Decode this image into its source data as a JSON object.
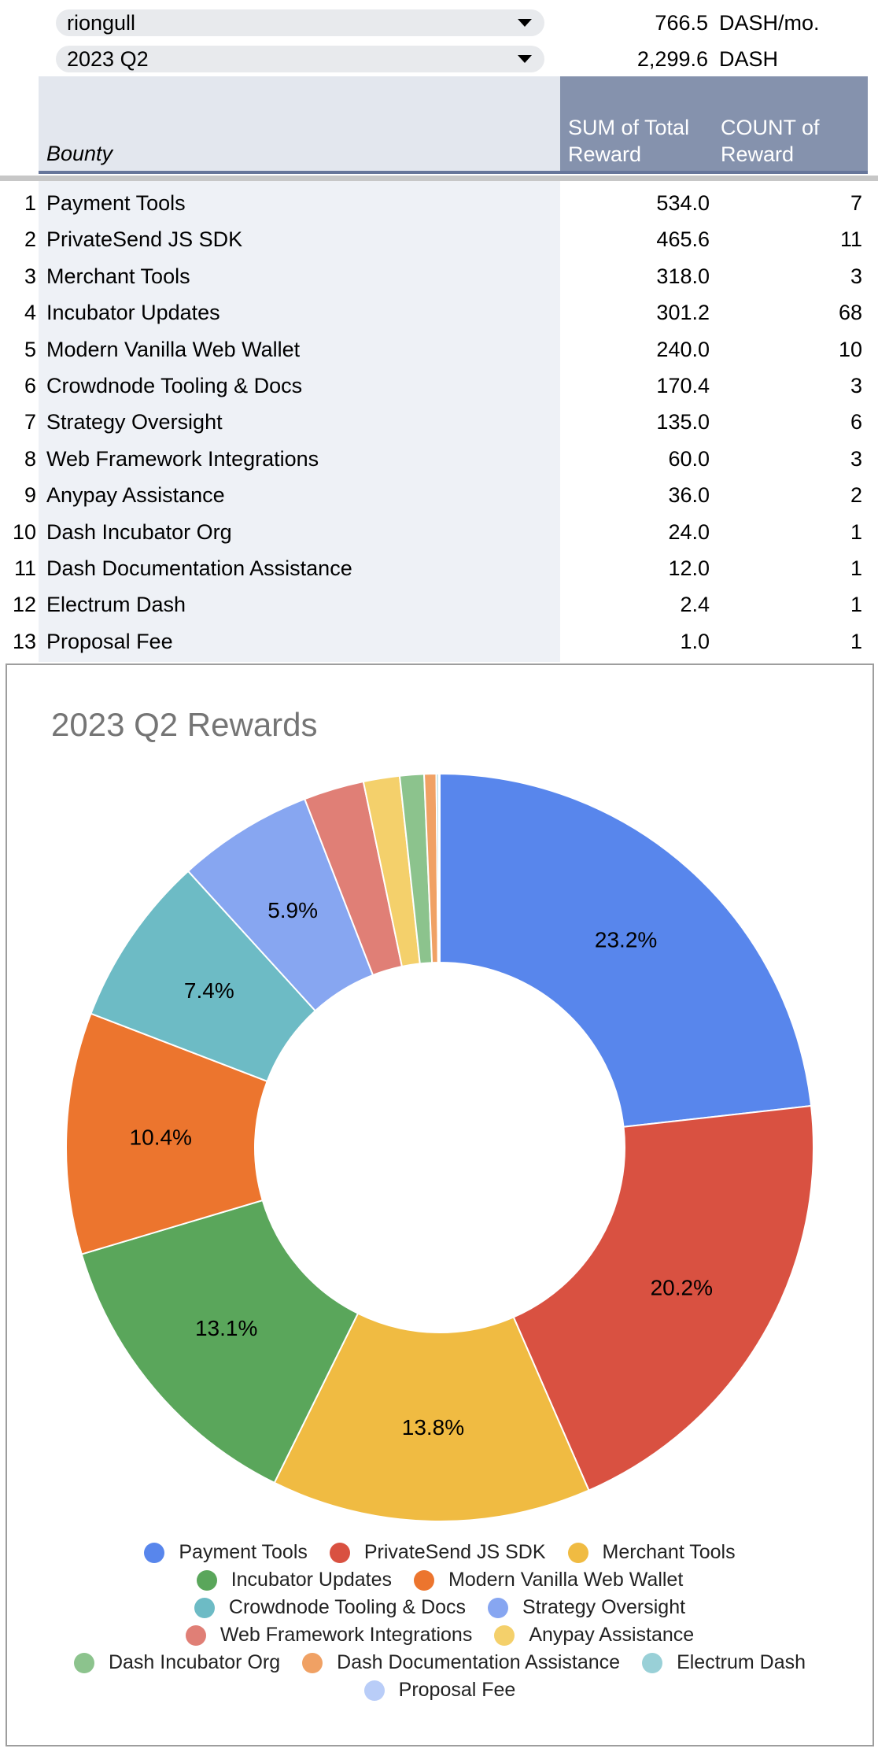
{
  "filters": {
    "user": {
      "value": "riongull",
      "amount": "766.5",
      "unit": "DASH/mo."
    },
    "quarter": {
      "value": "2023 Q2",
      "amount": "2,299.6",
      "unit": "DASH"
    }
  },
  "pivot": {
    "headers": {
      "bounty": "Bounty",
      "sum": "SUM of Total Reward",
      "count": "COUNT of Reward"
    },
    "rows": [
      {
        "idx": "1",
        "name": "Payment Tools",
        "sum": "534.0",
        "count": "7"
      },
      {
        "idx": "2",
        "name": "PrivateSend JS SDK",
        "sum": "465.6",
        "count": "11"
      },
      {
        "idx": "3",
        "name": "Merchant Tools",
        "sum": "318.0",
        "count": "3"
      },
      {
        "idx": "4",
        "name": "Incubator Updates",
        "sum": "301.2",
        "count": "68"
      },
      {
        "idx": "5",
        "name": "Modern Vanilla Web Wallet",
        "sum": "240.0",
        "count": "10"
      },
      {
        "idx": "6",
        "name": "Crowdnode Tooling & Docs",
        "sum": "170.4",
        "count": "3"
      },
      {
        "idx": "7",
        "name": "Strategy Oversight",
        "sum": "135.0",
        "count": "6"
      },
      {
        "idx": "8",
        "name": "Web Framework Integrations",
        "sum": "60.0",
        "count": "3"
      },
      {
        "idx": "9",
        "name": "Anypay Assistance",
        "sum": "36.0",
        "count": "2"
      },
      {
        "idx": "10",
        "name": "Dash Incubator Org",
        "sum": "24.0",
        "count": "1"
      },
      {
        "idx": "11",
        "name": "Dash Documentation Assistance",
        "sum": "12.0",
        "count": "1"
      },
      {
        "idx": "12",
        "name": "Electrum Dash",
        "sum": "2.4",
        "count": "1"
      },
      {
        "idx": "13",
        "name": "Proposal Fee",
        "sum": "1.0",
        "count": "1"
      }
    ]
  },
  "chart_data": {
    "type": "pie",
    "donut": true,
    "title": "2023 Q2 Rewards",
    "legend_position": "bottom",
    "categories": [
      "Payment Tools",
      "PrivateSend JS SDK",
      "Merchant Tools",
      "Incubator Updates",
      "Modern Vanilla Web Wallet",
      "Crowdnode Tooling & Docs",
      "Strategy Oversight",
      "Web Framework Integrations",
      "Anypay Assistance",
      "Dash Incubator Org",
      "Dash Documentation Assistance",
      "Electrum Dash",
      "Proposal Fee"
    ],
    "values": [
      534.0,
      465.6,
      318.0,
      301.2,
      240.0,
      170.4,
      135.0,
      60.0,
      36.0,
      24.0,
      12.0,
      2.4,
      1.0
    ],
    "slice_labels": [
      "23.2%",
      "20.2%",
      "13.8%",
      "13.1%",
      "10.4%",
      "7.4%",
      "5.9%",
      "",
      "",
      "",
      "",
      "",
      ""
    ],
    "colors": [
      "#5886ec",
      "#d95141",
      "#f0bb42",
      "#5aa65b",
      "#ec752e",
      "#6dbbc5",
      "#87a6f1",
      "#e07f76",
      "#f4d06b",
      "#8cc38d",
      "#f0a164",
      "#99d0d7",
      "#b9cdf8"
    ]
  }
}
